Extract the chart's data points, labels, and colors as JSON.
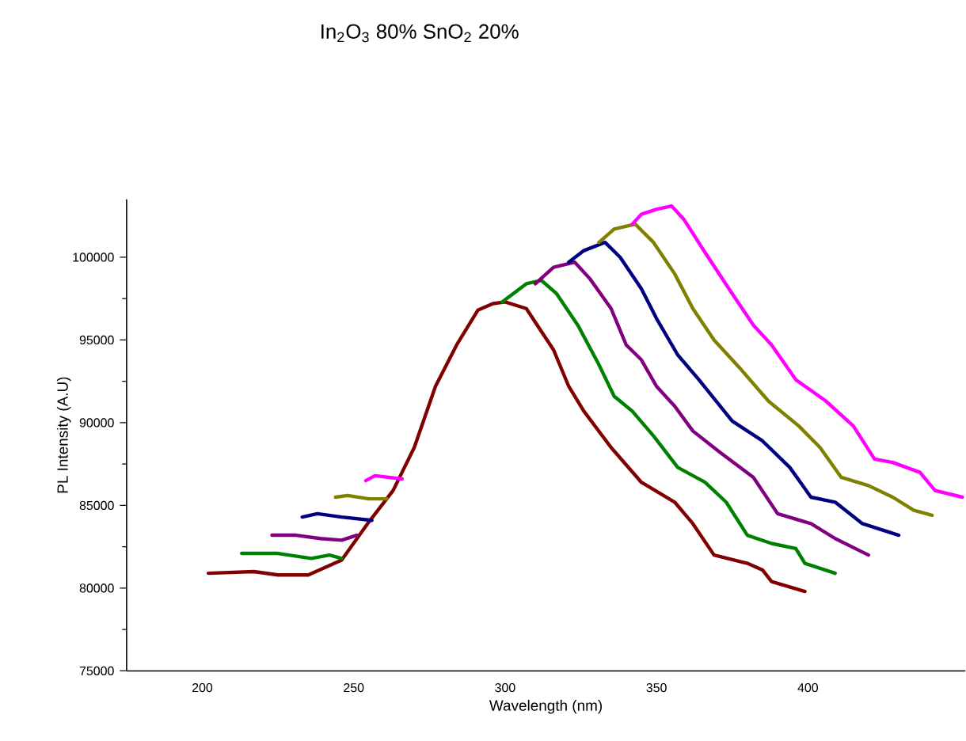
{
  "chart_data": {
    "type": "line",
    "title": "In$_{2}$O$_{3}$ 80% SnO$_{2}$ 20%",
    "xlabel": "Wavelength (nm)",
    "ylabel": "PL Intensity (A.U)",
    "xlim": [
      175,
      452
    ],
    "ylim": [
      75000,
      103500
    ],
    "xticks": [
      200,
      250,
      300,
      350,
      400
    ],
    "yticks": [
      75000,
      80000,
      85000,
      90000,
      95000,
      100000
    ],
    "grid": false,
    "marker": "none",
    "line_style": "solid",
    "series": [
      {
        "color": "#800000",
        "x": [
          202,
          217,
          225,
          235,
          246,
          255,
          263,
          270,
          277,
          284,
          291,
          296,
          300,
          307,
          316,
          321,
          326,
          335,
          345,
          356,
          362,
          369,
          380,
          385,
          388,
          399
        ],
        "values": [
          80900,
          81000,
          80800,
          80800,
          81700,
          84000,
          85900,
          88500,
          92200,
          94700,
          96800,
          97200,
          97300,
          96900,
          94400,
          92200,
          90700,
          88500,
          86400,
          85200,
          83900,
          82000,
          81500,
          81100,
          80400,
          79800
        ]
      },
      {
        "color": "#008000",
        "x": [
          213,
          225,
          236,
          242,
          246,
          270,
          299,
          307,
          312,
          317,
          324,
          331,
          336,
          342,
          349,
          357,
          366,
          373,
          380,
          388,
          396,
          399,
          409
        ],
        "values": [
          82100,
          82100,
          81800,
          82000,
          81800,
          null,
          97300,
          98400,
          98600,
          97800,
          95900,
          93500,
          91600,
          90700,
          89200,
          87300,
          86400,
          85200,
          83200,
          82700,
          82400,
          81500,
          80900
        ]
      },
      {
        "color": "#800080",
        "x": [
          223,
          231,
          239,
          246,
          251,
          280,
          310,
          316,
          323,
          328,
          335,
          340,
          345,
          350,
          356,
          362,
          371,
          382,
          390,
          401,
          409,
          420
        ],
        "values": [
          83200,
          83200,
          83000,
          82900,
          83200,
          null,
          98400,
          99400,
          99700,
          98700,
          96900,
          94700,
          93800,
          92200,
          91000,
          89500,
          88200,
          86700,
          84500,
          83900,
          83000,
          82000
        ]
      },
      {
        "color": "#000080",
        "x": [
          233,
          238,
          246,
          256,
          290,
          321,
          326,
          333,
          338,
          345,
          350,
          357,
          364,
          375,
          385,
          394,
          401,
          409,
          418,
          430
        ],
        "values": [
          84300,
          84500,
          84300,
          84100,
          null,
          99700,
          100400,
          100900,
          100000,
          98100,
          96300,
          94100,
          92600,
          90100,
          88900,
          87300,
          85500,
          85200,
          83900,
          83200
        ]
      },
      {
        "color": "#808000",
        "x": [
          244,
          248,
          255,
          261,
          300,
          331,
          336,
          343,
          349,
          356,
          362,
          369,
          378,
          387,
          397,
          404,
          411,
          420,
          428,
          435,
          441
        ],
        "values": [
          85500,
          85600,
          85400,
          85400,
          null,
          100900,
          101700,
          102000,
          100900,
          99000,
          96900,
          95000,
          93200,
          91300,
          89800,
          88500,
          86700,
          86200,
          85500,
          84700,
          84400
        ]
      },
      {
        "color": "#ff00ff",
        "x": [
          254,
          257,
          266,
          300,
          342,
          345,
          350,
          355,
          359,
          366,
          375,
          382,
          388,
          396,
          406,
          415,
          422,
          428,
          437,
          442,
          451
        ],
        "values": [
          86500,
          86800,
          86600,
          null,
          102000,
          102600,
          102900,
          103100,
          102300,
          100300,
          97800,
          95900,
          94700,
          92600,
          91300,
          89800,
          87800,
          87600,
          87000,
          85900,
          85500
        ]
      }
    ]
  }
}
